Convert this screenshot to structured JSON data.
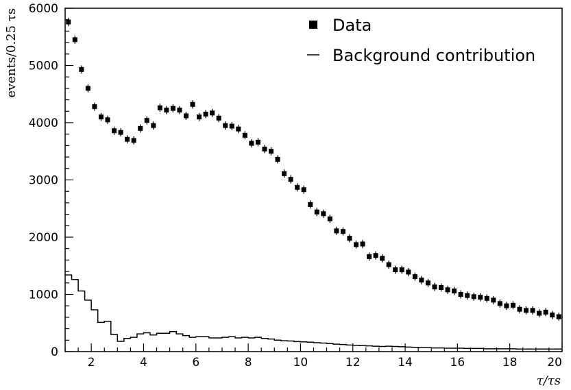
{
  "chart_data": {
    "type": "scatter",
    "xlabel": "τ/τs",
    "ylabel": "events/0.25 τs",
    "xlim": [
      1,
      20
    ],
    "ylim": [
      0,
      6000
    ],
    "x_ticks": [
      2,
      4,
      6,
      8,
      10,
      12,
      14,
      16,
      18,
      20
    ],
    "y_ticks": [
      0,
      1000,
      2000,
      3000,
      4000,
      5000,
      6000
    ],
    "legend_position": "top-right",
    "series": [
      {
        "name": "Data",
        "style": "markers",
        "color": "#000000",
        "x": [
          1.125,
          1.375,
          1.625,
          1.875,
          2.125,
          2.375,
          2.625,
          2.875,
          3.125,
          3.375,
          3.625,
          3.875,
          4.125,
          4.375,
          4.625,
          4.875,
          5.125,
          5.375,
          5.625,
          5.875,
          6.125,
          6.375,
          6.625,
          6.875,
          7.125,
          7.375,
          7.625,
          7.875,
          8.125,
          8.375,
          8.625,
          8.875,
          9.125,
          9.375,
          9.625,
          9.875,
          10.125,
          10.375,
          10.625,
          10.875,
          11.125,
          11.375,
          11.625,
          11.875,
          12.125,
          12.375,
          12.625,
          12.875,
          13.125,
          13.375,
          13.625,
          13.875,
          14.125,
          14.375,
          14.625,
          14.875,
          15.125,
          15.375,
          15.625,
          15.875,
          16.125,
          16.375,
          16.625,
          16.875,
          17.125,
          17.375,
          17.625,
          17.875,
          18.125,
          18.375,
          18.625,
          18.875,
          19.125,
          19.375,
          19.625,
          19.875
        ],
        "y": [
          5760,
          5450,
          4930,
          4600,
          4280,
          4100,
          4050,
          3860,
          3830,
          3710,
          3690,
          3900,
          4040,
          3950,
          4260,
          4220,
          4250,
          4220,
          4120,
          4320,
          4100,
          4150,
          4170,
          4080,
          3950,
          3940,
          3890,
          3780,
          3640,
          3660,
          3540,
          3500,
          3360,
          3110,
          3010,
          2870,
          2830,
          2570,
          2440,
          2410,
          2320,
          2110,
          2100,
          1980,
          1870,
          1880,
          1660,
          1680,
          1630,
          1520,
          1430,
          1430,
          1390,
          1310,
          1250,
          1200,
          1130,
          1120,
          1080,
          1060,
          1000,
          980,
          960,
          950,
          930,
          900,
          840,
          800,
          810,
          740,
          720,
          720,
          670,
          690,
          640,
          610
        ]
      },
      {
        "name": "Background contribution",
        "style": "step",
        "color": "#000000",
        "x_edges_start": 1,
        "bin_width": 0.25,
        "values": [
          1340,
          1260,
          1060,
          900,
          730,
          510,
          530,
          300,
          180,
          230,
          250,
          310,
          330,
          290,
          320,
          320,
          350,
          310,
          280,
          250,
          260,
          260,
          240,
          240,
          250,
          260,
          240,
          250,
          240,
          250,
          230,
          220,
          200,
          190,
          185,
          175,
          170,
          165,
          155,
          150,
          140,
          130,
          125,
          115,
          110,
          105,
          100,
          95,
          90,
          95,
          90,
          85,
          80,
          75,
          70,
          70,
          65,
          65,
          60,
          60,
          60,
          55,
          55,
          55,
          50,
          50,
          50,
          50,
          50,
          45,
          45,
          45,
          45,
          45,
          45,
          45
        ]
      }
    ]
  }
}
